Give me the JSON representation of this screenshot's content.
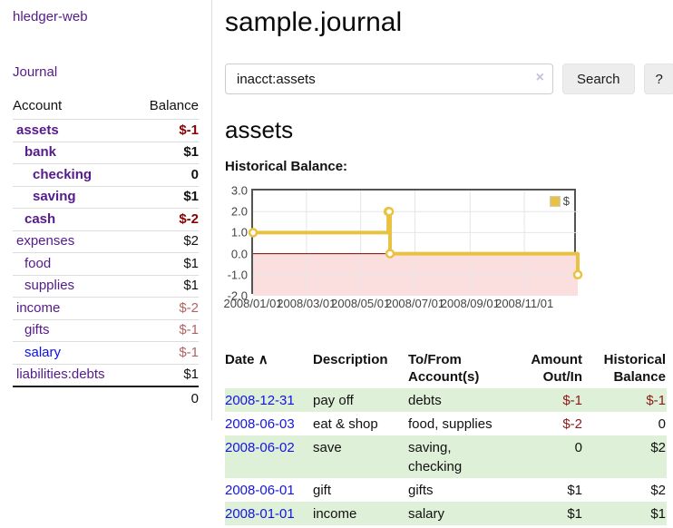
{
  "app": {
    "title": "hledger-web"
  },
  "sidebar": {
    "journal_link": "Journal",
    "table": {
      "headers": {
        "account": "Account",
        "balance": "Balance"
      },
      "rows": [
        {
          "name": "assets",
          "depth": 0,
          "bold": true,
          "link": "purple",
          "balance": "$-1",
          "balance_class": "neg-strong"
        },
        {
          "name": "bank",
          "depth": 1,
          "bold": true,
          "link": "purple",
          "balance": "$1",
          "balance_class": ""
        },
        {
          "name": "checking",
          "depth": 2,
          "bold": true,
          "link": "purple",
          "balance": "0",
          "balance_class": ""
        },
        {
          "name": "saving",
          "depth": 2,
          "bold": true,
          "link": "purple",
          "balance": "$1",
          "balance_class": ""
        },
        {
          "name": "cash",
          "depth": 1,
          "bold": true,
          "link": "purple",
          "balance": "$-2",
          "balance_class": "neg-strong"
        },
        {
          "name": "expenses",
          "depth": 0,
          "bold": false,
          "link": "purple",
          "balance": "$2",
          "balance_class": ""
        },
        {
          "name": "food",
          "depth": 1,
          "bold": false,
          "link": "purple",
          "balance": "$1",
          "balance_class": ""
        },
        {
          "name": "supplies",
          "depth": 1,
          "bold": false,
          "link": "purple",
          "balance": "$1",
          "balance_class": ""
        },
        {
          "name": "income",
          "depth": 0,
          "bold": false,
          "link": "purple",
          "balance": "$-2",
          "balance_class": "neg-soft"
        },
        {
          "name": "gifts",
          "depth": 1,
          "bold": false,
          "link": "purple",
          "balance": "$-1",
          "balance_class": "neg-soft"
        },
        {
          "name": "salary",
          "depth": 1,
          "bold": false,
          "link": "blue",
          "balance": "$-1",
          "balance_class": "neg-soft"
        },
        {
          "name": "liabilities:debts",
          "depth": 0,
          "bold": false,
          "link": "purple",
          "balance": "$1",
          "balance_class": ""
        }
      ],
      "total": "0"
    }
  },
  "main": {
    "title": "sample.journal",
    "search": {
      "value": "inacct:assets",
      "clear_icon": "×",
      "button": "Search",
      "help_button": "?"
    },
    "account_heading": "assets",
    "chart_label": "Historical Balance:",
    "register": {
      "headers": {
        "date": "Date",
        "sort_arrow": "∧",
        "description": "Description",
        "accounts_l1": "To/From",
        "accounts_l2": "Account(s)",
        "amount_l1": "Amount",
        "amount_l2": "Out/In",
        "balance_l1": "Historical",
        "balance_l2": "Balance"
      },
      "rows": [
        {
          "date": "2008-12-31",
          "description": "pay off",
          "accounts": "debts",
          "amount": "$-1",
          "amount_neg": true,
          "balance": "$-1",
          "balance_neg": true,
          "green": true
        },
        {
          "date": "2008-06-03",
          "description": "eat & shop",
          "accounts": "food, supplies",
          "amount": "$-2",
          "amount_neg": true,
          "balance": "0",
          "balance_neg": false,
          "green": false
        },
        {
          "date": "2008-06-02",
          "description": "save",
          "accounts": "saving, checking",
          "amount": "0",
          "amount_neg": false,
          "balance": "$2",
          "balance_neg": false,
          "green": true
        },
        {
          "date": "2008-06-01",
          "description": "gift",
          "accounts": "gifts",
          "amount": "$1",
          "amount_neg": false,
          "balance": "$2",
          "balance_neg": false,
          "green": false
        },
        {
          "date": "2008-01-01",
          "description": "income",
          "accounts": "salary",
          "amount": "$1",
          "amount_neg": false,
          "balance": "$1",
          "balance_neg": false,
          "green": true
        }
      ]
    }
  },
  "chart_data": {
    "type": "line",
    "step": true,
    "title": "Historical Balance",
    "series": [
      {
        "name": "$",
        "color": "#e8c240",
        "points": [
          [
            "2008-01-01",
            1
          ],
          [
            "2008-06-01",
            2
          ],
          [
            "2008-06-02",
            2
          ],
          [
            "2008-06-03",
            0
          ],
          [
            "2008-12-31",
            -1
          ]
        ]
      }
    ],
    "x_range": [
      "2008-01-01",
      "2008-12-31"
    ],
    "ylim": [
      -2,
      3
    ],
    "yticks": [
      3,
      2,
      1,
      0,
      -1,
      -2
    ],
    "xticks": [
      {
        "date": "2008-01-01",
        "label": "2008/01/01"
      },
      {
        "date": "2008-03-01",
        "label": "2008/03/01"
      },
      {
        "date": "2008-05-01",
        "label": "2008/05/01"
      },
      {
        "date": "2008-07-01",
        "label": "2008/07/01"
      },
      {
        "date": "2008-09-01",
        "label": "2008/09/01"
      },
      {
        "date": "2008-11-01",
        "label": "2008/11/01"
      }
    ],
    "grid": true,
    "grid_color": "#e6e6e6",
    "zero_line_color": "#8b0000",
    "negative_region_color": "#fbdede",
    "legend": {
      "label": "$",
      "position": "top-right"
    }
  },
  "colors": {
    "link_purple": "#551a8b",
    "link_blue": "#0d0dee",
    "negative_strong": "#8b0000",
    "negative_soft": "#b26262",
    "row_green": "#dff0d8",
    "chart_line_gold": "#e8c240"
  }
}
